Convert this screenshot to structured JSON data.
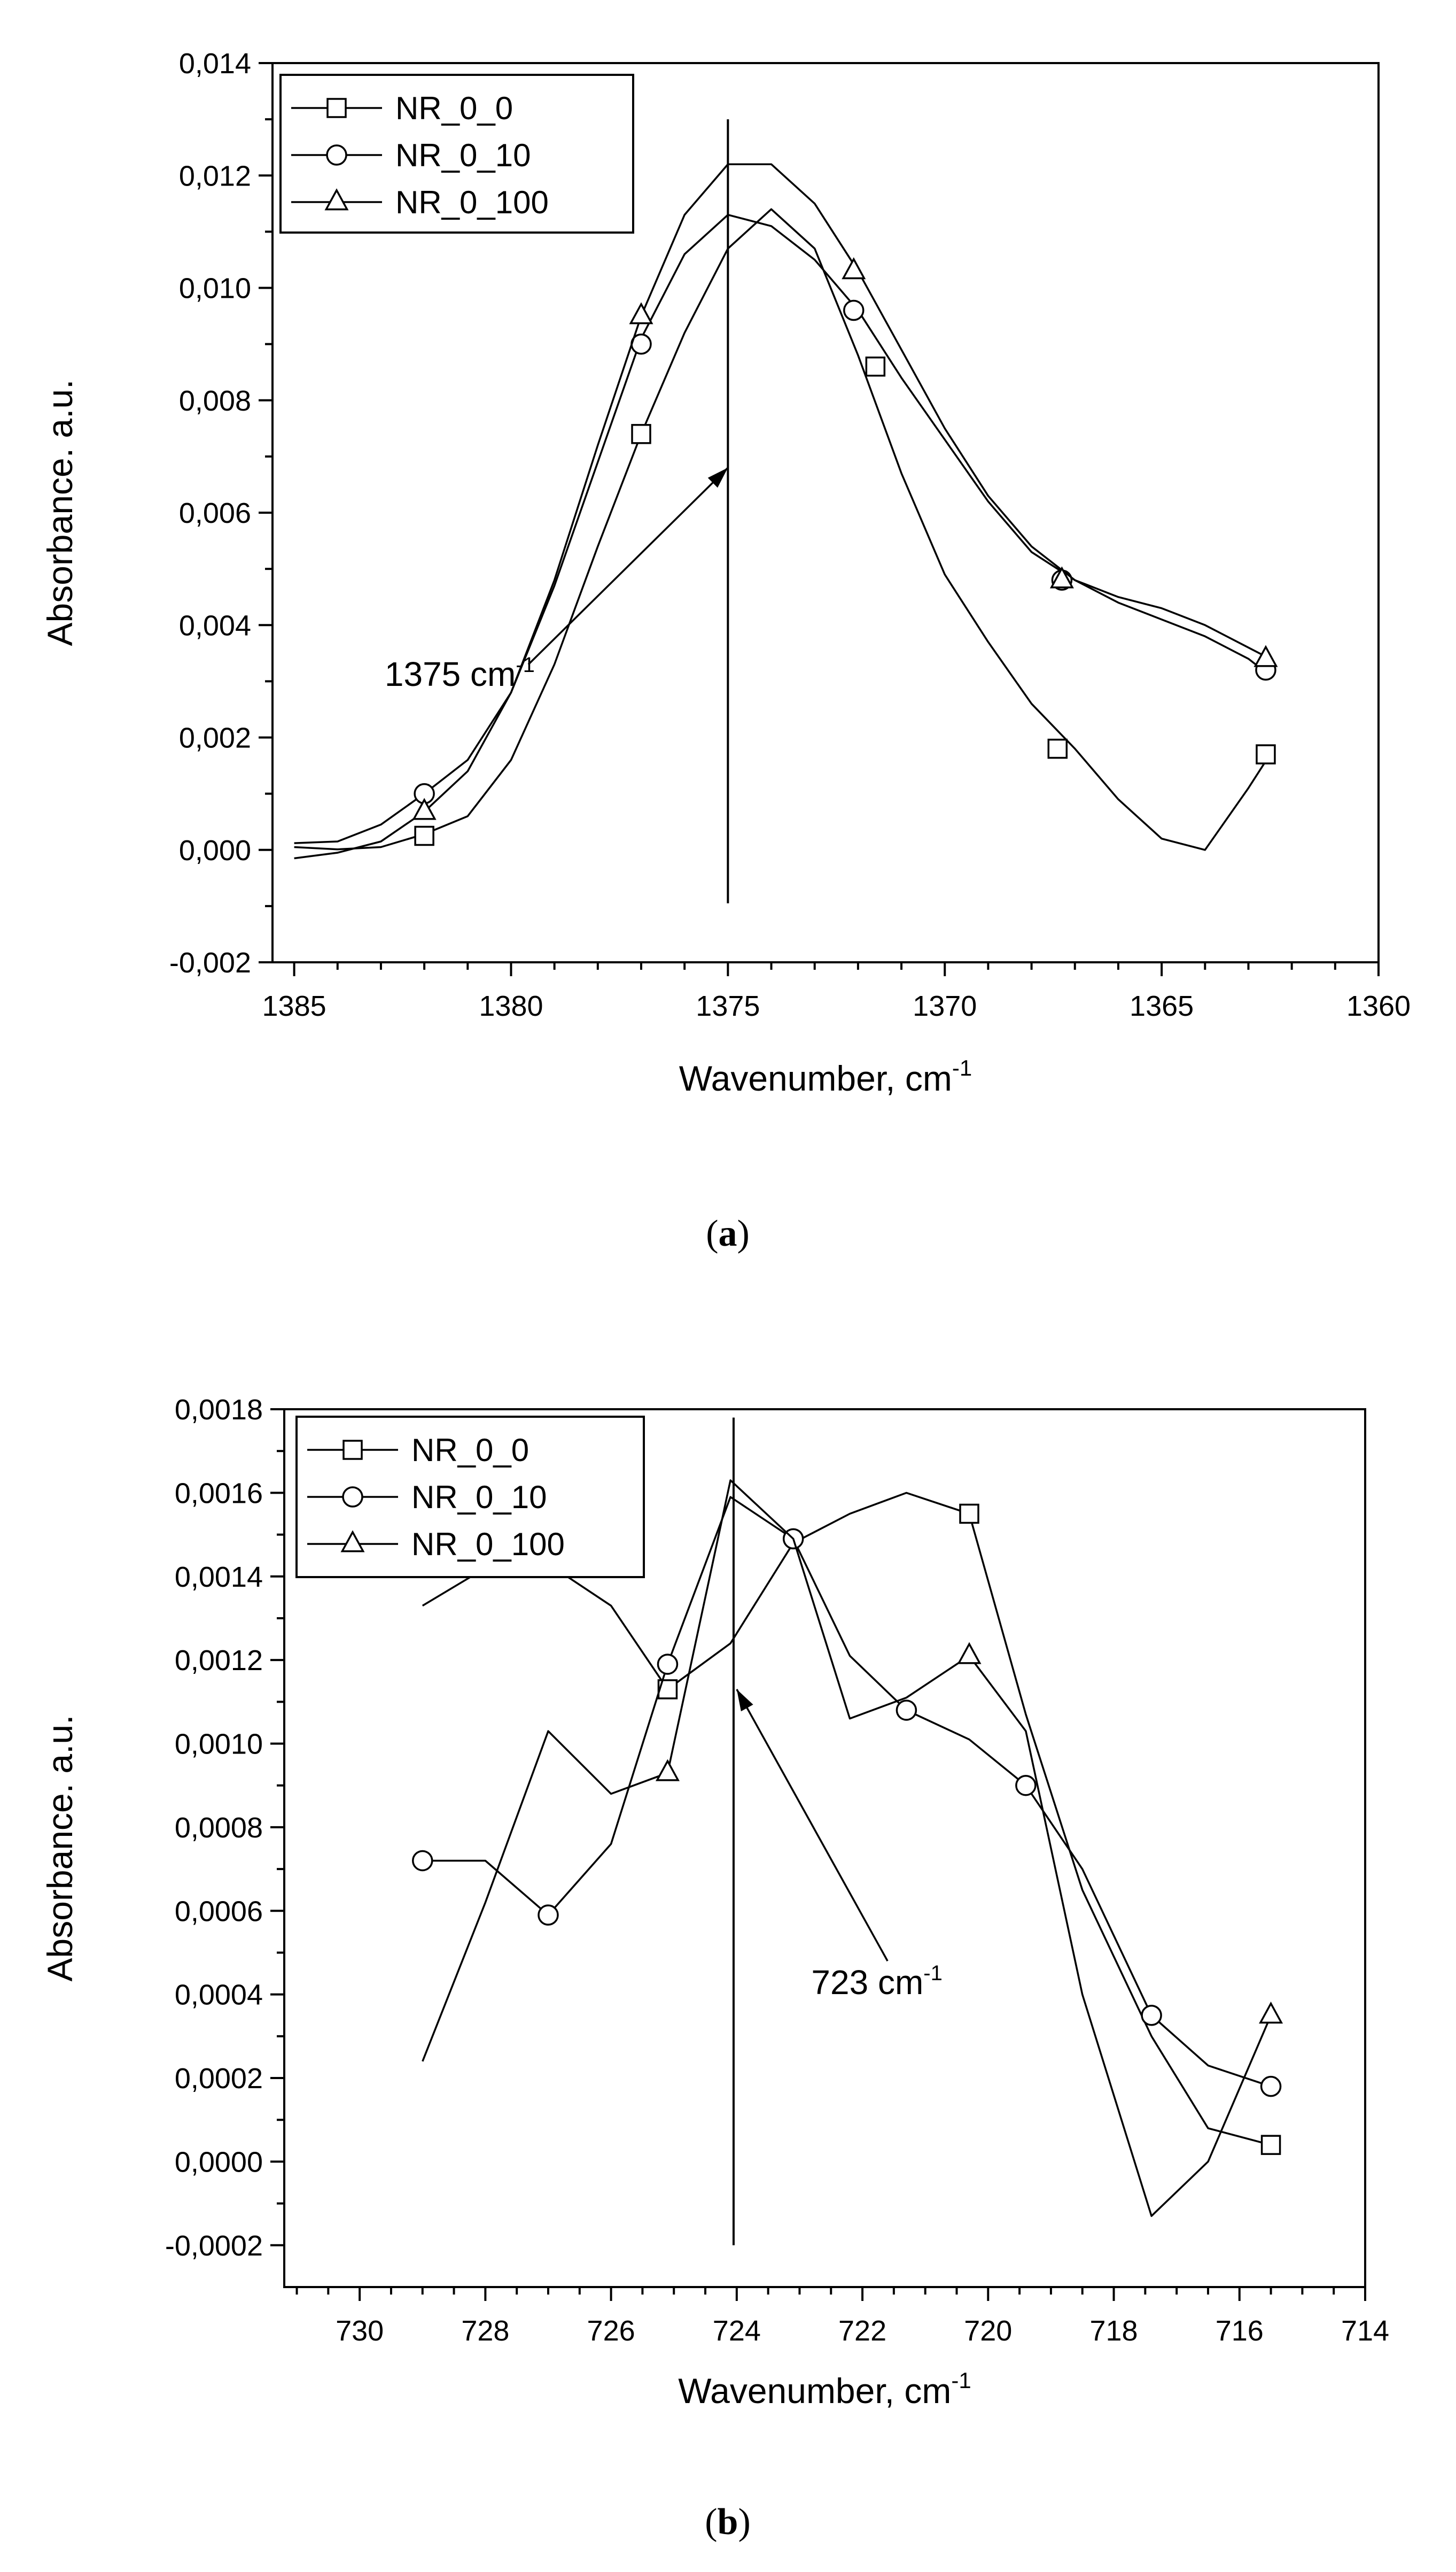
{
  "chart_data": [
    {
      "type": "line",
      "panel": "a",
      "caption": {
        "open": "(",
        "letter": "a",
        "close": ")"
      },
      "xlabel": "Wavenumber, cm",
      "xlabel_sup": "-1",
      "ylabel": "Absorbance. a.u.",
      "xlim": [
        1385.5,
        1360
      ],
      "ylim": [
        -0.002,
        0.014
      ],
      "x_ticks": [
        1385,
        1380,
        1375,
        1370,
        1365,
        1360
      ],
      "x_tick_labels": [
        "1385",
        "1380",
        "1375",
        "1370",
        "1365",
        "1360"
      ],
      "y_ticks": [
        -0.002,
        0.0,
        0.002,
        0.004,
        0.006,
        0.008,
        0.01,
        0.012,
        0.014
      ],
      "y_tick_labels": [
        "-0,002",
        "0,000",
        "0,002",
        "0,004",
        "0,006",
        "0,008",
        "0,010",
        "0,012",
        "0,014"
      ],
      "legend_position": "top-left",
      "reference_line": {
        "x": 1375,
        "y_from": -0.00095,
        "y_to": 0.013
      },
      "annotation": {
        "text": "1375 cm",
        "sup": "-1",
        "anchor": [
          1379.6,
          0.0033
        ],
        "arrow_to": [
          1375,
          0.0068
        ]
      },
      "series": [
        {
          "name": "NR_0_0",
          "marker": "square",
          "x": [
            1385,
            1384,
            1383,
            1382,
            1381,
            1380,
            1379,
            1378,
            1377,
            1376,
            1375,
            1374,
            1373,
            1372,
            1371,
            1370,
            1369,
            1368,
            1367,
            1366,
            1365,
            1364,
            1363,
            1362.5
          ],
          "y": [
            5e-05,
            1e-05,
            5e-05,
            0.00028,
            0.0006,
            0.0016,
            0.0033,
            0.0054,
            0.0074,
            0.0092,
            0.0107,
            0.0114,
            0.0107,
            0.0088,
            0.0067,
            0.0049,
            0.0037,
            0.0026,
            0.0018,
            0.0009,
            0.0002,
            0.0,
            0.0011,
            0.0017
          ],
          "markers_x": [
            1382,
            1377,
            1371.6,
            1367.4,
            1362.6
          ],
          "markers_y": [
            0.00025,
            0.0074,
            0.0086,
            0.0018,
            0.0017
          ]
        },
        {
          "name": "NR_0_10",
          "marker": "circle",
          "x": [
            1385,
            1384,
            1383,
            1382,
            1381,
            1380,
            1379,
            1378,
            1377,
            1376,
            1375,
            1374,
            1373,
            1372,
            1371,
            1370,
            1369,
            1368,
            1367,
            1366,
            1365,
            1364,
            1363,
            1362.5
          ],
          "y": [
            0.00012,
            0.00015,
            0.00045,
            0.001,
            0.0016,
            0.0028,
            0.0047,
            0.0069,
            0.0091,
            0.0106,
            0.0113,
            0.0111,
            0.0105,
            0.0096,
            0.0084,
            0.0073,
            0.0062,
            0.0053,
            0.0048,
            0.0044,
            0.0041,
            0.0038,
            0.0034,
            0.0031
          ],
          "markers_x": [
            1382,
            1377,
            1372.1,
            1367.3,
            1362.6
          ],
          "markers_y": [
            0.001,
            0.009,
            0.0096,
            0.0048,
            0.0032
          ]
        },
        {
          "name": "NR_0_100",
          "marker": "triangle",
          "x": [
            1385,
            1384,
            1383,
            1382,
            1381,
            1380,
            1379,
            1378,
            1377,
            1376,
            1375,
            1374,
            1373,
            1372,
            1371,
            1370,
            1369,
            1368,
            1367,
            1366,
            1365,
            1364,
            1363,
            1362.5
          ],
          "y": [
            -0.00015,
            -5e-05,
            0.00015,
            0.00068,
            0.0014,
            0.0028,
            0.0048,
            0.0072,
            0.0095,
            0.0113,
            0.0122,
            0.0122,
            0.0115,
            0.0103,
            0.0089,
            0.0075,
            0.0063,
            0.0054,
            0.0048,
            0.0045,
            0.0043,
            0.004,
            0.0036,
            0.0034
          ],
          "markers_x": [
            1382,
            1377,
            1372.1,
            1367.3,
            1362.6
          ],
          "markers_y": [
            0.00068,
            0.0095,
            0.0103,
            0.0048,
            0.0034
          ]
        }
      ]
    },
    {
      "type": "line",
      "panel": "b",
      "caption": {
        "open": "(",
        "letter": "b",
        "close": ")"
      },
      "xlabel": "Wavenumber, cm",
      "xlabel_sup": "-1",
      "ylabel": "Absorbance. a.u.",
      "xlim": [
        731.2,
        714
      ],
      "ylim": [
        -0.0003,
        0.0018
      ],
      "x_ticks": [
        730,
        728,
        726,
        724,
        722,
        720,
        718,
        716,
        714
      ],
      "x_tick_labels": [
        "730",
        "728",
        "726",
        "724",
        "722",
        "720",
        "718",
        "716",
        "714"
      ],
      "y_ticks": [
        -0.0002,
        0.0,
        0.0002,
        0.0004,
        0.0006,
        0.0008,
        0.001,
        0.0012,
        0.0014,
        0.0016,
        0.0018
      ],
      "y_tick_labels": [
        "-0,0002",
        "0,0000",
        "0,0002",
        "0,0004",
        "0,0006",
        "0,0008",
        "0,0010",
        "0,0012",
        "0,0014",
        "0,0016",
        "0,0018"
      ],
      "legend_position": "top-left",
      "reference_line": {
        "x": 724.05,
        "y_from": -0.0002,
        "y_to": 0.00178
      },
      "annotation": {
        "text": "723 cm",
        "sup": "-1",
        "anchor": [
          721.6,
          0.00048
        ],
        "arrow_to": [
          724.0,
          0.00113
        ]
      },
      "series": [
        {
          "name": "NR_0_0",
          "marker": "square",
          "x": [
            729,
            728,
            727,
            726,
            725.1,
            724.1,
            723.1,
            722.2,
            721.3,
            720.3,
            719.4,
            718.5,
            717.4,
            716.5,
            715.5
          ],
          "y": [
            0.00133,
            0.00142,
            0.00143,
            0.00133,
            0.00113,
            0.00124,
            0.00148,
            0.00155,
            0.0016,
            0.00155,
            0.00107,
            0.00065,
            0.0003,
            8e-05,
            4e-05
          ],
          "markers_x": [
            725.1,
            720.3,
            715.5
          ],
          "markers_y": [
            0.00113,
            0.00155,
            4e-05
          ]
        },
        {
          "name": "NR_0_10",
          "marker": "circle",
          "x": [
            729,
            728,
            727,
            726,
            725.1,
            724.1,
            723.1,
            722.2,
            721.3,
            720.3,
            719.4,
            718.5,
            717.4,
            716.5,
            715.5
          ],
          "y": [
            0.00072,
            0.00072,
            0.00059,
            0.00076,
            0.00119,
            0.00159,
            0.00149,
            0.00121,
            0.00108,
            0.00101,
            0.0009,
            0.0007,
            0.00035,
            0.00023,
            0.00018
          ],
          "markers_x": [
            729,
            727,
            725.1,
            723.1,
            721.3,
            719.4,
            717.4,
            715.5
          ],
          "markers_y": [
            0.00072,
            0.00059,
            0.00119,
            0.00149,
            0.00108,
            0.0009,
            0.00035,
            0.00018
          ]
        },
        {
          "name": "NR_0_100",
          "marker": "triangle",
          "x": [
            729,
            728,
            727,
            726,
            725.1,
            724.1,
            723.1,
            722.2,
            721.3,
            720.3,
            719.4,
            718.5,
            717.4,
            716.5,
            715.5
          ],
          "y": [
            0.00024,
            0.00062,
            0.00103,
            0.00088,
            0.00093,
            0.00163,
            0.00149,
            0.00106,
            0.00111,
            0.00121,
            0.00103,
            0.0004,
            -0.00013,
            0.0,
            0.00035
          ],
          "markers_x": [
            725.1,
            720.3,
            715.5
          ],
          "markers_y": [
            0.00093,
            0.00121,
            0.00035
          ]
        }
      ]
    }
  ]
}
